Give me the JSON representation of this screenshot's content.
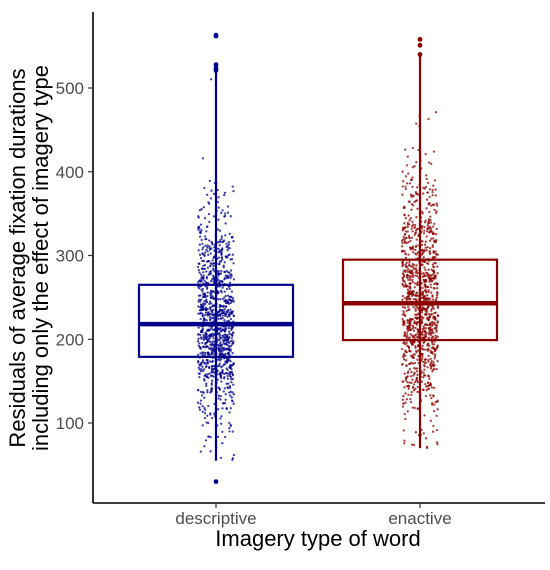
{
  "chart_data": {
    "type": "box",
    "title": "",
    "xlabel": "Imagery type of word",
    "ylabel_lines": [
      "Residuals of average fixation durations",
      "including only the effect of imagery type"
    ],
    "ylim": [
      20,
      570
    ],
    "y_ticks": [
      100,
      200,
      300,
      400,
      500
    ],
    "grid": false,
    "legend": "none",
    "categories": [
      "descriptive",
      "enactive"
    ],
    "series": [
      {
        "category": "descriptive",
        "color": "#00008b",
        "q1": 179,
        "median": 218,
        "q3": 265,
        "whisker_low": 55,
        "whisker_high": 520,
        "min": 30,
        "max": 563,
        "outliers": [
          30,
          521,
          524,
          528,
          562,
          563
        ]
      },
      {
        "category": "enactive",
        "color": "#8b0000",
        "q1": 199,
        "median": 243,
        "q3": 295,
        "whisker_low": 70,
        "whisker_high": 538,
        "min": 70,
        "max": 558,
        "outliers": [
          540,
          551,
          558
        ]
      }
    ]
  }
}
